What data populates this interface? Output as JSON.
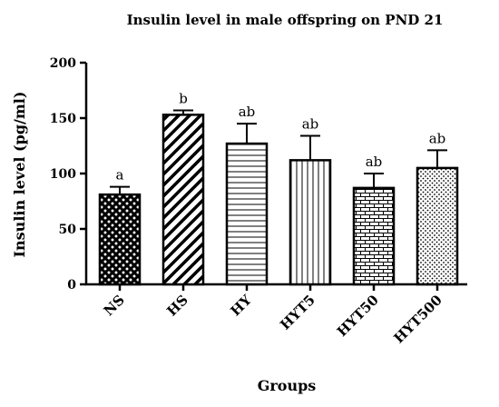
{
  "chart_data": {
    "type": "bar",
    "title": "Insulin level in male offspring on PND 21",
    "xlabel": "Groups",
    "ylabel": "Insulin level (pg/ml)",
    "ylim": [
      0,
      200
    ],
    "yticks": [
      0,
      50,
      100,
      150,
      200
    ],
    "grid": false,
    "categories": [
      "NS",
      "HS",
      "HY",
      "HYT5",
      "HYT50",
      "HYT500"
    ],
    "values": [
      81,
      153,
      127,
      112,
      87,
      105
    ],
    "errors": [
      7,
      4,
      18,
      22,
      13,
      16
    ],
    "significance": [
      "a",
      "b",
      "ab",
      "ab",
      "ab",
      "ab"
    ],
    "fill_patterns": [
      "crosshatch",
      "diagonal",
      "horizontal",
      "vertical",
      "brick",
      "dots"
    ],
    "colors": {
      "bar_fill": "#ffffff",
      "stroke": "#000000"
    }
  }
}
